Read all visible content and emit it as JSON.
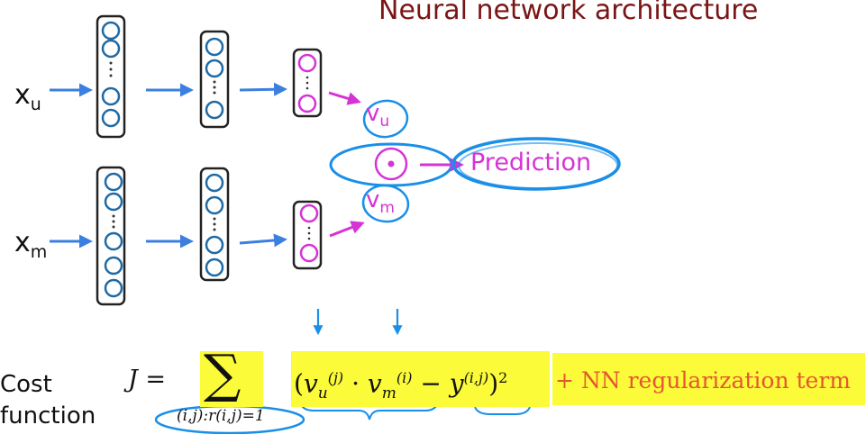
{
  "title": "Neural network architecture",
  "inputs": [
    {
      "base": "x",
      "sub": "u"
    },
    {
      "base": "x",
      "sub": "m"
    }
  ],
  "vectors": [
    {
      "base": "v",
      "sub": "u"
    },
    {
      "base": "v",
      "sub": "m"
    }
  ],
  "prediction_label": "Prediction",
  "cost": {
    "label_line1": "Cost",
    "label_line2": "function",
    "j_symbol": "J =",
    "sum_symbol": "∑",
    "sum_subscript": "(i,j):r(i,j)=1",
    "v_u": "v",
    "v_u_sub": "u",
    "v_u_sup": "(j)",
    "dot": "·",
    "v_m": "v",
    "v_m_sub": "m",
    "v_m_sup": "(i)",
    "minus": "−",
    "y": "y",
    "y_sup": "(i,j)",
    "open_paren": "(",
    "close_paren": ")",
    "power": "2",
    "regularization": "+ NN regularization  term"
  },
  "colors": {
    "title": "#7a1515",
    "network": "#1f6aa5",
    "arrow": "#3b7fe0",
    "magenta": "#d633d6",
    "annotation": "#1a8fe8",
    "highlight": "#fbfb3a",
    "regularization_text": "#e4572e"
  }
}
